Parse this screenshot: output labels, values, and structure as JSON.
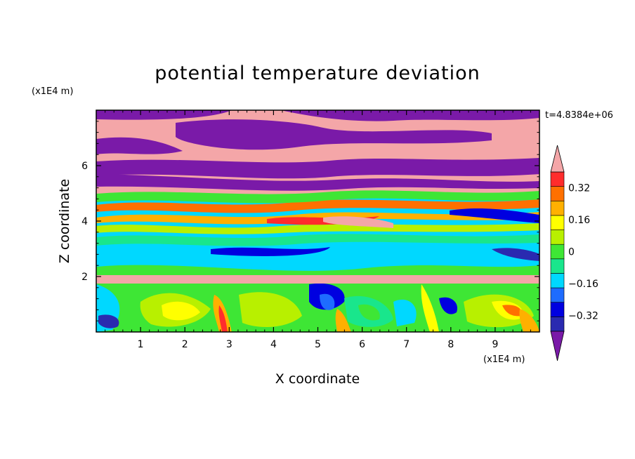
{
  "chart_data": {
    "type": "heatmap",
    "title": "potential temperature deviation",
    "xlabel": "X coordinate",
    "ylabel": "Z coordinate",
    "x_unit": "(x1E4 m)",
    "y_unit": "(x1E4 m)",
    "time_label": "t=4.8384e+06",
    "xlim": [
      0,
      10
    ],
    "ylim": [
      0,
      8
    ],
    "x_ticks": [
      "1",
      "2",
      "3",
      "4",
      "5",
      "6",
      "7",
      "8",
      "9"
    ],
    "y_ticks": [
      "2",
      "4",
      "6"
    ],
    "colorbar": {
      "levels": [
        -0.48,
        -0.4,
        -0.32,
        -0.24,
        -0.16,
        -0.08,
        0,
        0.08,
        0.16,
        0.24,
        0.32,
        0.4,
        0.48
      ],
      "labels": [
        "0.32",
        "0.16",
        "0",
        "−0.16",
        "−0.32"
      ],
      "colors": [
        "#7a1aa8",
        "#2a2ab0",
        "#0000e0",
        "#1e6cff",
        "#00d8ff",
        "#19e68c",
        "#3ee635",
        "#b8f000",
        "#ffff00",
        "#ffb000",
        "#ff7000",
        "#ff2c2c",
        "#f4a6a8"
      ]
    }
  }
}
